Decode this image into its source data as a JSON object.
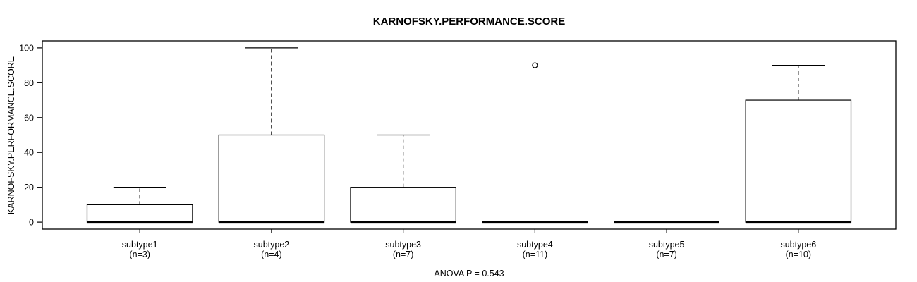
{
  "chart_data": {
    "type": "boxplot",
    "title": "KARNOFSKY.PERFORMANCE.SCORE",
    "ylabel": "KARNOFSKY.PERFORMANCE.SCORE",
    "xlabel": "",
    "annotation": "ANOVA P = 0.543",
    "ylim": [
      0,
      100
    ],
    "yticks": [
      0,
      20,
      40,
      60,
      80,
      100
    ],
    "grid": false,
    "legend": null,
    "groups": [
      {
        "label": "subtype1",
        "sublabel": "(n=3)",
        "n": 3,
        "whisker_low": 0,
        "q1": 0,
        "median": 0,
        "q3": 10,
        "whisker_high": 20,
        "outliers": []
      },
      {
        "label": "subtype2",
        "sublabel": "(n=4)",
        "n": 4,
        "whisker_low": 0,
        "q1": 0,
        "median": 0,
        "q3": 50,
        "whisker_high": 100,
        "outliers": []
      },
      {
        "label": "subtype3",
        "sublabel": "(n=7)",
        "n": 7,
        "whisker_low": 0,
        "q1": 0,
        "median": 0,
        "q3": 20,
        "whisker_high": 50,
        "outliers": []
      },
      {
        "label": "subtype4",
        "sublabel": "(n=11)",
        "n": 11,
        "whisker_low": 0,
        "q1": 0,
        "median": 0,
        "q3": 0,
        "whisker_high": 0,
        "outliers": [
          90
        ]
      },
      {
        "label": "subtype5",
        "sublabel": "(n=7)",
        "n": 7,
        "whisker_low": 0,
        "q1": 0,
        "median": 0,
        "q3": 0,
        "whisker_high": 0,
        "outliers": []
      },
      {
        "label": "subtype6",
        "sublabel": "(n=10)",
        "n": 10,
        "whisker_low": 0,
        "q1": 0,
        "median": 0,
        "q3": 70,
        "whisker_high": 90,
        "outliers": []
      }
    ],
    "colors": {
      "stroke": "#000000",
      "box_fill": "#ffffff",
      "background": "#ffffff"
    }
  }
}
